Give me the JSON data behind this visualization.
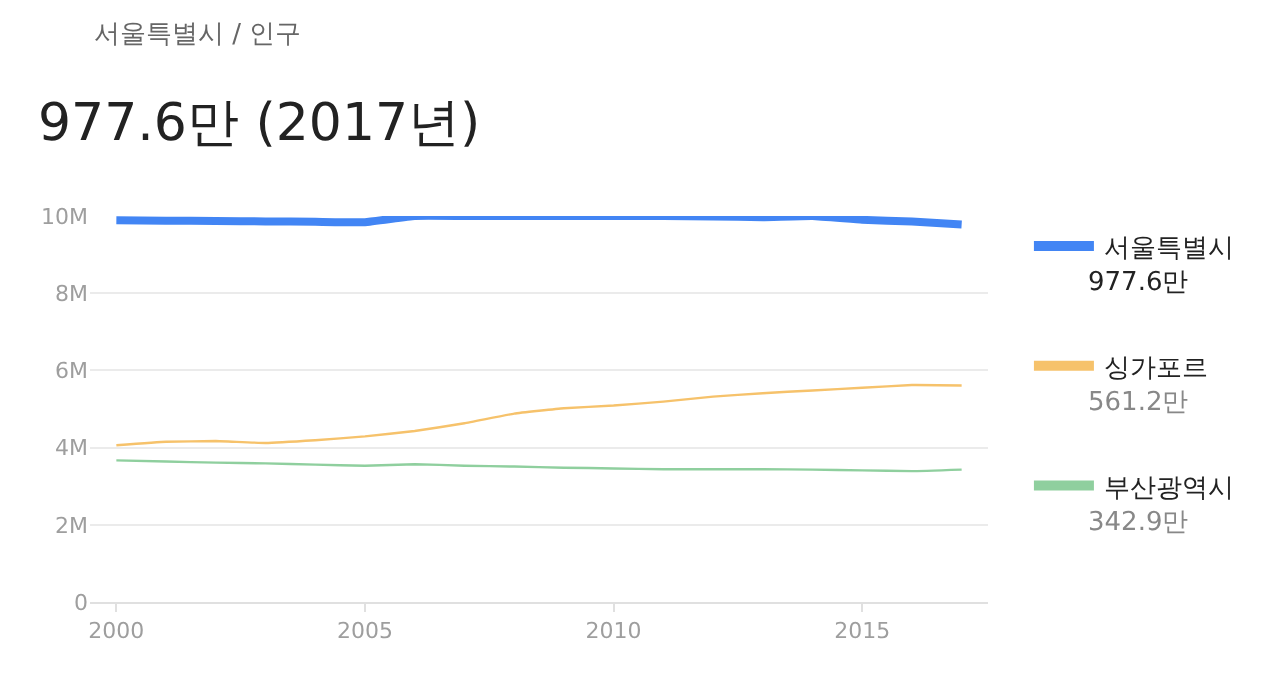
{
  "chart_data": {
    "type": "line",
    "subtitle": "서울특별시 / 인구",
    "title": "977.6만 (2017년)",
    "x": [
      2000,
      2001,
      2002,
      2003,
      2004,
      2005,
      2006,
      2007,
      2008,
      2009,
      2010,
      2011,
      2012,
      2013,
      2014,
      2015,
      2016,
      2017
    ],
    "series": [
      {
        "name": "서울특별시",
        "color": "#4285f4",
        "values": [
          9890000,
          9880000,
          9870000,
          9860000,
          9850000,
          9840000,
          10000000,
          10000000,
          10000000,
          10000000,
          10000000,
          10000000,
          9990000,
          9970000,
          10000000,
          9900000,
          9860000,
          9780000
        ]
      },
      {
        "name": "싱가포르",
        "color": "#f6c26b",
        "values": [
          4060000,
          4150000,
          4170000,
          4120000,
          4190000,
          4290000,
          4430000,
          4630000,
          4880000,
          5020000,
          5090000,
          5190000,
          5320000,
          5410000,
          5480000,
          5550000,
          5620000,
          5610000
        ]
      },
      {
        "name": "부산광역시",
        "color": "#8fcf9e",
        "values": [
          3670000,
          3640000,
          3610000,
          3590000,
          3560000,
          3530000,
          3570000,
          3530000,
          3510000,
          3480000,
          3460000,
          3440000,
          3440000,
          3440000,
          3430000,
          3410000,
          3390000,
          3430000
        ]
      }
    ],
    "annotations": [
      "977.6만",
      "561.2만",
      "342.9만"
    ],
    "xlim": [
      1999.47,
      2017.53
    ],
    "xticks": [
      2000,
      2005,
      2010,
      2015
    ],
    "ylim": [
      0,
      10000000
    ],
    "yticks": [
      {
        "value": 0,
        "label": "0"
      },
      {
        "value": 2000000,
        "label": "2M"
      },
      {
        "value": 4000000,
        "label": "4M"
      },
      {
        "value": 6000000,
        "label": "6M"
      },
      {
        "value": 8000000,
        "label": "8M"
      },
      {
        "value": 10000000,
        "label": "10M"
      }
    ],
    "grid": "y",
    "legend": "right"
  }
}
